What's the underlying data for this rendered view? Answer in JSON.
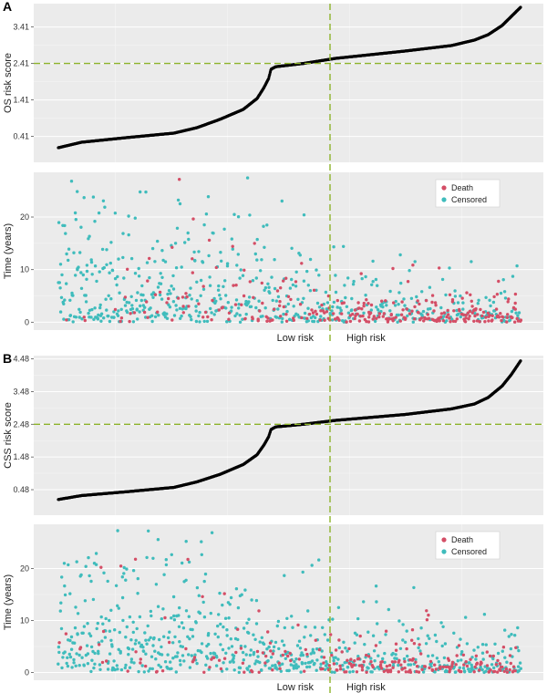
{
  "chart_data": [
    {
      "panel": "A",
      "type": "scatter",
      "subtype": "risk-score-curve",
      "ylabel": "OS risk score",
      "yticks": [
        0.41,
        1.41,
        2.41,
        3.41
      ],
      "ylim": [
        -0.3,
        4.05
      ],
      "cutoff_score": 2.41,
      "n_patients": 900,
      "cutoff_rank_fraction": 0.53,
      "score_profile": [
        [
          0,
          0.1
        ],
        [
          0.05,
          0.25
        ],
        [
          0.15,
          0.38
        ],
        [
          0.25,
          0.5
        ],
        [
          0.3,
          0.65
        ],
        [
          0.35,
          0.88
        ],
        [
          0.4,
          1.15
        ],
        [
          0.43,
          1.45
        ],
        [
          0.445,
          1.75
        ],
        [
          0.455,
          2.0
        ],
        [
          0.46,
          2.25
        ],
        [
          0.47,
          2.32
        ],
        [
          0.53,
          2.41
        ],
        [
          0.6,
          2.55
        ],
        [
          0.75,
          2.75
        ],
        [
          0.85,
          2.9
        ],
        [
          0.9,
          3.05
        ],
        [
          0.93,
          3.2
        ],
        [
          0.96,
          3.45
        ],
        [
          0.98,
          3.7
        ],
        [
          1.0,
          3.95
        ]
      ]
    },
    {
      "panel": "A",
      "type": "scatter",
      "subtype": "survival-status",
      "ylabel": "Time (years)",
      "yticks": [
        0,
        10,
        20
      ],
      "ylim": [
        -1.5,
        28.5
      ],
      "legend": [
        {
          "label": "Death",
          "color": "#d44e66"
        },
        {
          "label": "Censored",
          "color": "#3fbcbc"
        }
      ],
      "legend_position": "top-right",
      "group_labels": {
        "low": "Low risk",
        "high": "High risk"
      },
      "n_patients": 900,
      "death_probability": {
        "low_start": 0.05,
        "low_end": 0.3,
        "high_start": 0.4,
        "high_end": 0.55
      },
      "time_mean": {
        "low_start": 10,
        "low_end": 5,
        "high_start": 4,
        "high_end": 2.5
      },
      "max_time": 27.5,
      "seed": 11
    },
    {
      "panel": "B",
      "type": "scatter",
      "subtype": "risk-score-curve",
      "ylabel": "CSS risk score",
      "yticks": [
        0.48,
        1.48,
        2.48,
        3.48,
        4.48
      ],
      "ylim": [
        -0.3,
        4.58
      ],
      "cutoff_score": 2.48,
      "n_patients": 900,
      "cutoff_rank_fraction": 0.53,
      "score_profile": [
        [
          0,
          0.18
        ],
        [
          0.05,
          0.3
        ],
        [
          0.15,
          0.42
        ],
        [
          0.25,
          0.55
        ],
        [
          0.3,
          0.72
        ],
        [
          0.35,
          0.95
        ],
        [
          0.4,
          1.25
        ],
        [
          0.43,
          1.55
        ],
        [
          0.445,
          1.85
        ],
        [
          0.455,
          2.1
        ],
        [
          0.46,
          2.32
        ],
        [
          0.47,
          2.4
        ],
        [
          0.53,
          2.48
        ],
        [
          0.6,
          2.6
        ],
        [
          0.75,
          2.78
        ],
        [
          0.85,
          2.95
        ],
        [
          0.9,
          3.1
        ],
        [
          0.93,
          3.3
        ],
        [
          0.96,
          3.65
        ],
        [
          0.98,
          4.0
        ],
        [
          1.0,
          4.42
        ]
      ]
    },
    {
      "panel": "B",
      "type": "scatter",
      "subtype": "survival-status",
      "ylabel": "Time (years)",
      "yticks": [
        0,
        10,
        20
      ],
      "ylim": [
        -1.5,
        28.5
      ],
      "legend": [
        {
          "label": "Death",
          "color": "#d44e66"
        },
        {
          "label": "Censored",
          "color": "#3fbcbc"
        }
      ],
      "legend_position": "top-right",
      "group_labels": {
        "low": "Low risk",
        "high": "High risk"
      },
      "n_patients": 900,
      "death_probability": {
        "low_start": 0.04,
        "low_end": 0.25,
        "high_start": 0.35,
        "high_end": 0.5
      },
      "time_mean": {
        "low_start": 10,
        "low_end": 5,
        "high_start": 4,
        "high_end": 2.5
      },
      "max_time": 27.5,
      "seed": 29
    }
  ],
  "colors": {
    "panel_bg": "#ebebeb",
    "cutoff_line": "#8db32a",
    "score_points": "#000000",
    "death": "#d44e66",
    "censored": "#3fbcbc"
  }
}
